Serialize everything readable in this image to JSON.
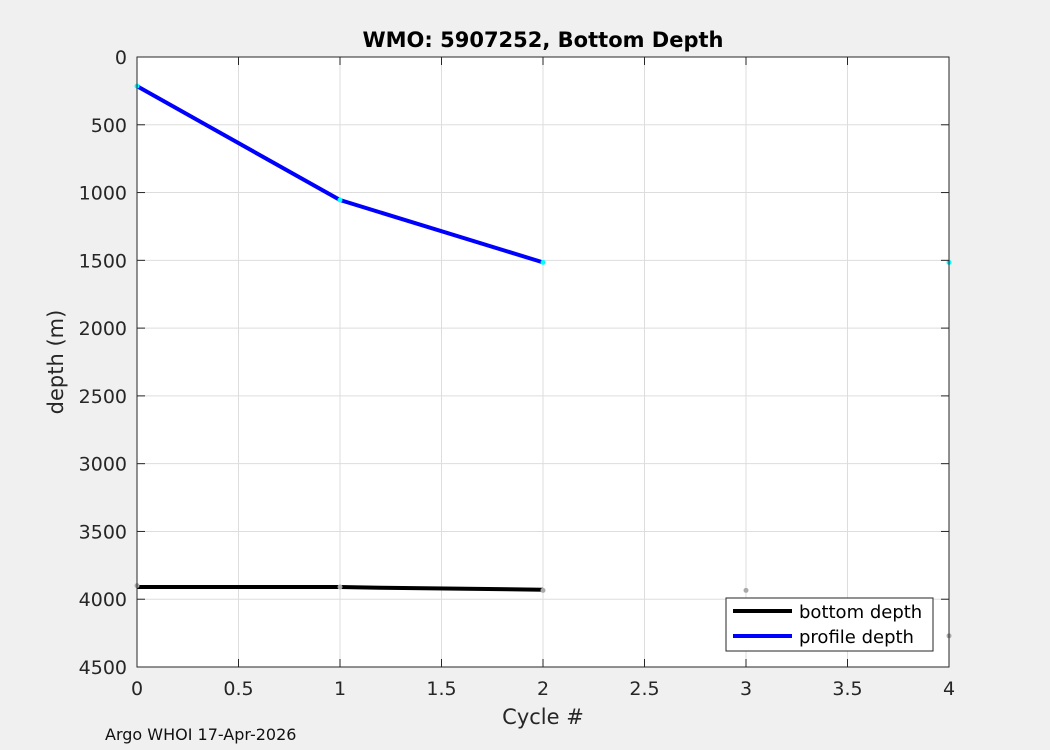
{
  "footer_text": "Argo WHOI 17-Apr-2026",
  "colors": {
    "figure_background": "#f0f0f0",
    "axes_background": "#ffffff",
    "grid": "#dddddd",
    "bottom_depth": "#000000",
    "profile_depth": "#0000ff",
    "profile_marker": "#00ffff",
    "bottom_marker": "#aaaaaa"
  },
  "chart_data": {
    "type": "line",
    "title": "WMO: 5907252, Bottom Depth",
    "xlabel": "Cycle #",
    "ylabel": "depth (m)",
    "xlim": [
      0,
      4
    ],
    "ylim": [
      0,
      4500
    ],
    "y_reversed": true,
    "grid": true,
    "legend_position": "bottom-right",
    "x_ticks": [
      "0",
      "0.5",
      "1",
      "1.5",
      "2",
      "2.5",
      "3",
      "3.5",
      "4"
    ],
    "y_ticks": [
      "0",
      "500",
      "1000",
      "1500",
      "2000",
      "2500",
      "3000",
      "3500",
      "4000",
      "4500"
    ],
    "series": [
      {
        "name": "bottom depth",
        "color": "#000000",
        "points": [
          [
            0,
            3910
          ],
          [
            1,
            3910
          ],
          [
            1.2,
            3915
          ],
          [
            2,
            3930
          ]
        ]
      },
      {
        "name": "profile depth",
        "color": "#0000ff",
        "points": [
          [
            0,
            215
          ],
          [
            1,
            1055
          ],
          [
            2,
            1515
          ]
        ]
      }
    ],
    "markers": [
      {
        "series": "profile depth",
        "color": "#00ffff",
        "points": [
          [
            0,
            215
          ],
          [
            1,
            1055
          ],
          [
            2,
            1515
          ],
          [
            4,
            1515
          ]
        ]
      },
      {
        "series": "bottom depth",
        "color": "#aaaaaa",
        "points": [
          [
            0,
            3900
          ],
          [
            1,
            3910
          ],
          [
            2,
            3935
          ],
          [
            3,
            3935
          ],
          [
            4,
            4270
          ]
        ]
      }
    ]
  }
}
